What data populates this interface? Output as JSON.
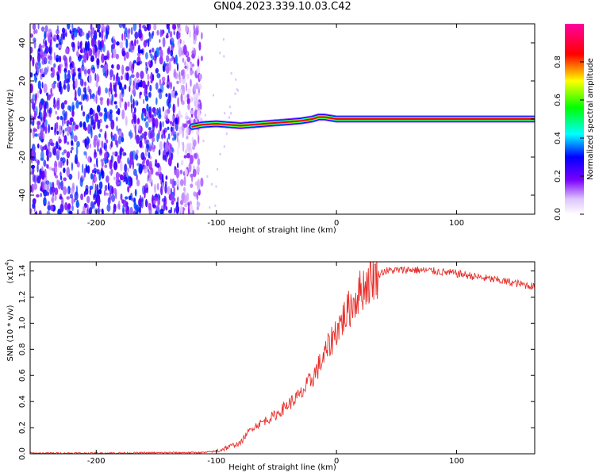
{
  "chart_data": [
    {
      "type": "heatmap",
      "title": "GN04.2023.339.10.03.C42",
      "xlabel": "Height of straight line (km)",
      "ylabel": "Frequency (Hz)",
      "xlim": [
        -255,
        165
      ],
      "ylim": [
        -50,
        50
      ],
      "xticks": [
        -200,
        -100,
        0,
        100
      ],
      "xtick_labels": [
        "-200",
        "-100",
        "0",
        "100"
      ],
      "yticks": [
        -40,
        -20,
        0,
        20,
        40
      ],
      "ytick_labels": [
        "-40",
        "-20",
        "0",
        "20",
        "40"
      ],
      "colorbar": {
        "label": "Normalized spectral amplitude",
        "range": [
          0.0,
          1.0
        ],
        "ticks": [
          0.0,
          0.2,
          0.4,
          0.6,
          0.8
        ],
        "tick_labels": [
          "0.0",
          "0.2",
          "0.4",
          "0.6",
          "0.8"
        ],
        "colors": [
          "#ffffff",
          "#7b00ff",
          "#0000ff",
          "#00ffff",
          "#00ff00",
          "#ffff00",
          "#ff0000",
          "#ff00a0"
        ]
      },
      "noise_region": {
        "x_range": [
          -255,
          -112
        ],
        "freq_range": [
          -50,
          50
        ],
        "amplitude": [
          0.1,
          0.35
        ]
      },
      "signal_path": {
        "x": [
          -120,
          -112,
          -100,
          -90,
          -80,
          -70,
          -60,
          -50,
          -40,
          -30,
          -20,
          -15,
          -10,
          0,
          10,
          20,
          40,
          80,
          120,
          165
        ],
        "frequency": [
          -4,
          -3,
          -2.5,
          -3,
          -3.5,
          -3,
          -2.5,
          -2,
          -1.5,
          -1,
          0,
          1,
          1,
          0,
          0,
          0,
          0,
          0,
          0,
          0
        ],
        "amplitude": [
          0.3,
          0.5,
          0.6,
          0.6,
          0.65,
          0.7,
          0.7,
          0.75,
          0.8,
          0.85,
          0.9,
          0.9,
          0.95,
          1.0,
          1.0,
          1.0,
          1.0,
          1.0,
          1.0,
          1.0
        ]
      },
      "grid": false
    },
    {
      "type": "line",
      "xlabel": "Height of straight line (km)",
      "ylabel": "SNR (10 * v/v)",
      "y_multiplier": "(x10",
      "y_multiplier_exp": "4",
      "y_multiplier_close": ")",
      "xlim": [
        -255,
        165
      ],
      "ylim": [
        0,
        1.47
      ],
      "xticks": [
        -200,
        -100,
        0,
        100
      ],
      "xtick_labels": [
        "-200",
        "-100",
        "0",
        "100"
      ],
      "yticks": [
        0.0,
        0.2,
        0.4,
        0.6,
        0.8,
        1.0,
        1.2,
        1.4
      ],
      "ytick_labels": [
        "0.0",
        "0.2",
        "0.4",
        "0.6",
        "0.8",
        "1.0",
        "1.2",
        "1.4"
      ],
      "color": "#e8312c",
      "x": [
        -255,
        -200,
        -150,
        -110,
        -100,
        -90,
        -85,
        -80,
        -75,
        -70,
        -60,
        -50,
        -40,
        -30,
        -20,
        -10,
        0,
        10,
        20,
        30,
        40,
        60,
        80,
        100,
        120,
        140,
        165
      ],
      "y": [
        0.005,
        0.005,
        0.008,
        0.01,
        0.02,
        0.05,
        0.07,
        0.08,
        0.15,
        0.2,
        0.25,
        0.3,
        0.38,
        0.45,
        0.58,
        0.75,
        0.95,
        1.1,
        1.25,
        1.35,
        1.4,
        1.41,
        1.4,
        1.38,
        1.35,
        1.32,
        1.28
      ],
      "grid": false
    }
  ]
}
